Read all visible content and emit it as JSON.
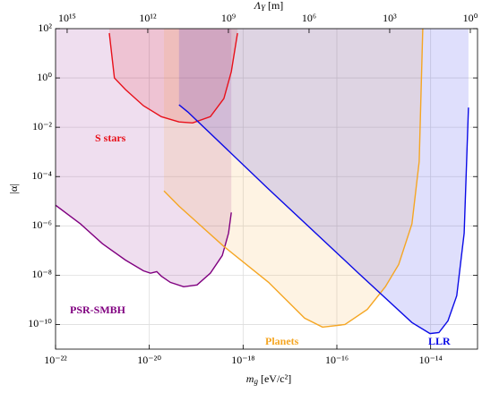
{
  "chart_data": {
    "type": "line",
    "xlabel": "m_g [eV/c²]",
    "ylabel": "|α|",
    "x2label": "Λ_Y [m]",
    "xscale": "log",
    "yscale": "log",
    "x2scale": "log",
    "grid": true,
    "fill": "above",
    "xlim": [
      1e-22,
      1e-13
    ],
    "ylim": [
      1e-11,
      100
    ],
    "x2lim": [
      2700000000000000.0,
      0.54
    ],
    "xticks": [
      {
        "value": 1e-22,
        "label": "10⁻²²"
      },
      {
        "value": 1e-20,
        "label": "10⁻²⁰"
      },
      {
        "value": 1e-18,
        "label": "10⁻¹⁸"
      },
      {
        "value": 1e-16,
        "label": "10⁻¹⁶"
      },
      {
        "value": 1e-14,
        "label": "10⁻¹⁴"
      }
    ],
    "yticks": [
      {
        "value": 1e-10,
        "label": "10⁻¹⁰"
      },
      {
        "value": 1e-08,
        "label": "10⁻⁸"
      },
      {
        "value": 1e-06,
        "label": "10⁻⁶"
      },
      {
        "value": 0.0001,
        "label": "10⁻⁴"
      },
      {
        "value": 0.01,
        "label": "10⁻²"
      },
      {
        "value": 1,
        "label": "10⁰"
      },
      {
        "value": 100,
        "label": "10²"
      }
    ],
    "x2ticks": [
      {
        "value": 1000000000000000.0,
        "label": "10¹⁵"
      },
      {
        "value": 1000000000000.0,
        "label": "10¹²"
      },
      {
        "value": 1000000000.0,
        "label": "10⁹"
      },
      {
        "value": 1000000.0,
        "label": "10⁶"
      },
      {
        "value": 1000,
        "label": "10³"
      },
      {
        "value": 1,
        "label": "10⁰"
      }
    ],
    "series": [
      {
        "name": "PSR-SMBH",
        "color": "#800080",
        "x": [
          1e-22,
          3.4e-22,
          1e-21,
          3.1e-21,
          7.5e-21,
          1.06e-20,
          1.44e-20,
          1.8e-20,
          2.8e-20,
          5.4e-20,
          1.04e-19,
          2e-19,
          3.6e-19,
          4.9e-19,
          5.6e-19
        ],
        "values": [
          6.9e-06,
          1.2e-06,
          1.9e-07,
          4.1e-08,
          1.5e-08,
          1.2e-08,
          1.4e-08,
          9.2e-09,
          5.1e-09,
          3.4e-09,
          4e-09,
          1.2e-08,
          6.3e-08,
          5.1e-07,
          3.5e-06
        ]
      },
      {
        "name": "S stars",
        "color": "#e8101a",
        "x": [
          1.4e-21,
          1.8e-21,
          3.1e-21,
          7.5e-21,
          1.8e-20,
          4.3e-20,
          8.4e-20,
          2e-19,
          3.9e-19,
          5.6e-19,
          7.6e-19
        ],
        "values": [
          66,
          1,
          0.34,
          0.075,
          0.027,
          0.0165,
          0.015,
          0.027,
          0.146,
          1.8,
          66
        ]
      },
      {
        "name": "Planets",
        "color": "#f5a623",
        "x": [
          2.05e-20,
          4.3e-20,
          3.9e-19,
          3.5e-18,
          2.05e-17,
          4.95e-17,
          1.49e-16,
          4.47e-16,
          1.08e-15,
          2.08e-15,
          4e-15,
          5.7e-15,
          6.8e-15
        ],
        "values": [
          2.6e-05,
          6.3e-06,
          1.46e-07,
          5.1e-09,
          1.8e-10,
          7.8e-11,
          1e-10,
          4.1e-10,
          3.4e-09,
          2.7e-08,
          1.2e-06,
          0.00041,
          100
        ]
      },
      {
        "name": "LLR",
        "color": "#0a0ae6",
        "x": [
          4.3e-20,
          6.7e-20,
          3.5e-18,
          2.9e-16,
          4e-15,
          9.7e-15,
          1.5e-14,
          2.34e-14,
          3.6e-14,
          5.2e-14,
          6.4e-14
        ],
        "values": [
          0.081,
          0.041,
          3.1e-05,
          1.2e-08,
          1.2e-10,
          4.3e-11,
          4.7e-11,
          1.4e-10,
          1.46e-09,
          5.1e-07,
          0.063
        ]
      }
    ]
  }
}
